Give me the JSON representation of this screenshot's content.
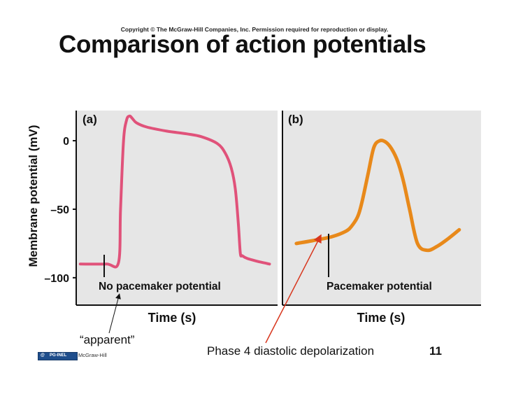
{
  "header": {
    "copyright": "Copyright © The McGraw-Hill Companies, Inc. Permission required for reproduction or display.",
    "title": "Comparison of action potentials"
  },
  "chart_data": [
    {
      "type": "line",
      "panel_label": "(a)",
      "xlabel": "Time (s)",
      "ylabel": "Membrane potential (mV)",
      "ylim": [
        -120,
        22
      ],
      "xlim": [
        0,
        10
      ],
      "yticks": [
        0,
        -50,
        -100
      ],
      "ytick_labels": [
        "0",
        "–50",
        "–100"
      ],
      "annotation": "No pacemaker potential",
      "color": "#e0527a",
      "grid": false,
      "series": [
        {
          "x": [
            0.2,
            1.5,
            2.1,
            2.2,
            2.35,
            2.5,
            2.65,
            2.8,
            3.0,
            3.5,
            4.5,
            5.5,
            6.2,
            7.0,
            7.4,
            7.7,
            7.9,
            8.05,
            8.15,
            8.25,
            8.5,
            9.0,
            9.6
          ],
          "y": [
            -90,
            -90,
            -89,
            -50,
            0,
            15,
            18,
            16,
            13,
            10,
            7,
            5,
            3,
            -2,
            -9,
            -20,
            -35,
            -60,
            -82,
            -84,
            -86,
            -88,
            -90
          ]
        }
      ]
    },
    {
      "type": "line",
      "panel_label": "(b)",
      "xlabel": "Time (s)",
      "ylim": [
        -120,
        22
      ],
      "xlim": [
        0,
        10
      ],
      "annotation": "Pacemaker potential",
      "color": "#e8891a",
      "grid": false,
      "series": [
        {
          "x": [
            0.7,
            1.5,
            2.5,
            3.2,
            3.5,
            3.8,
            4.0,
            4.3,
            4.6,
            4.9,
            5.2,
            5.5,
            5.8,
            6.1,
            6.4,
            6.8,
            7.3,
            7.8,
            8.3,
            8.9
          ],
          "y": [
            -75,
            -73,
            -70,
            -66,
            -62,
            -55,
            -45,
            -25,
            -5,
            0,
            -1,
            -6,
            -15,
            -30,
            -50,
            -75,
            -80,
            -77,
            -72,
            -65
          ]
        }
      ]
    }
  ],
  "notes": {
    "apparent": "“apparent”",
    "caption": "Phase 4 diastolic depolarization",
    "page_number": "11"
  },
  "footer": {
    "publisher": "McGraw-Hill",
    "logo_a": "@",
    "logo_b": "PG-INEL"
  }
}
